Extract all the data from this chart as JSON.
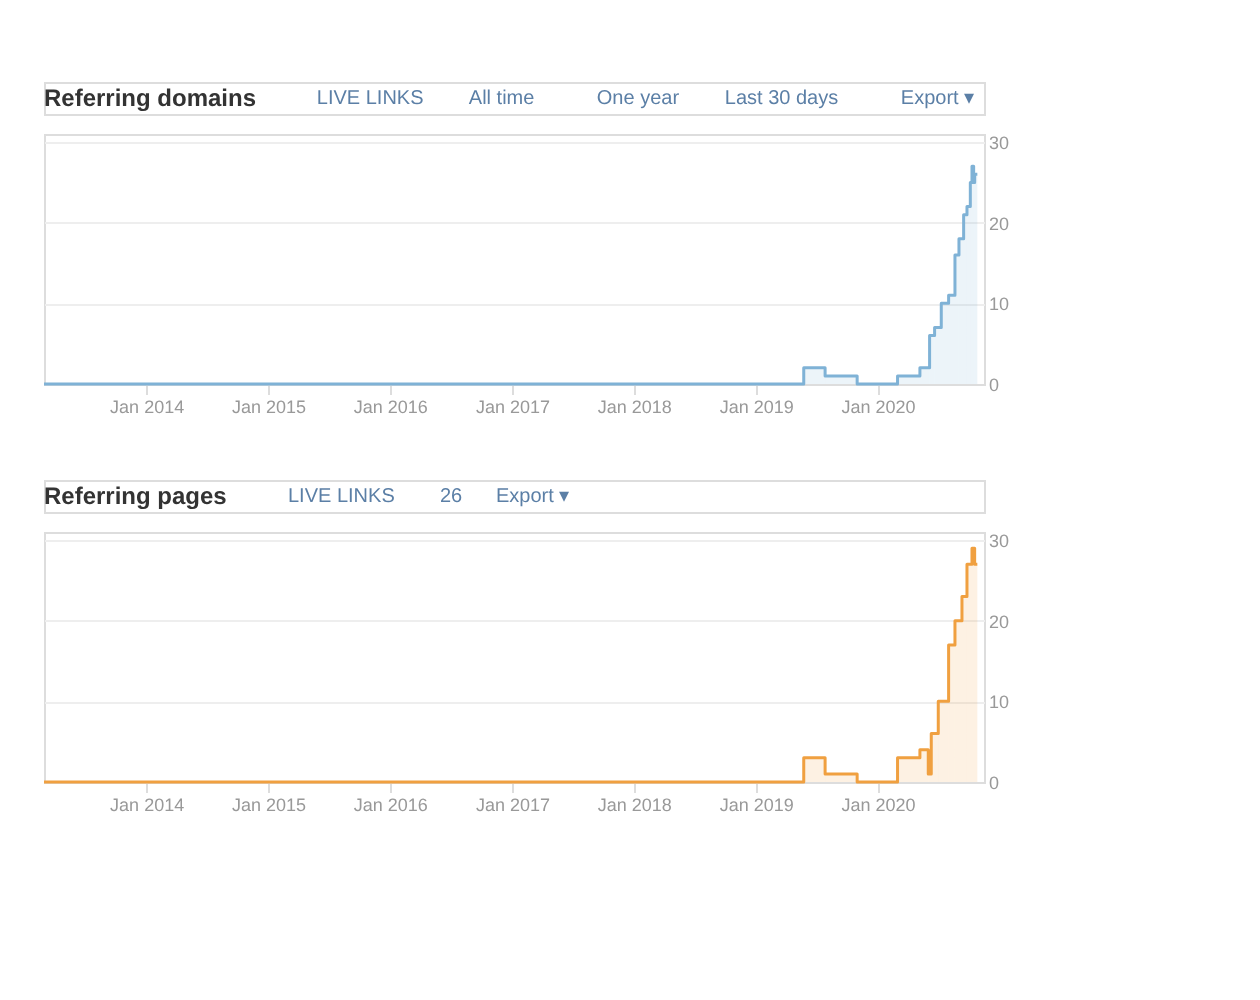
{
  "chart_data": [
    {
      "type": "area",
      "title": "Referring domains",
      "annotations": [
        "LIVE LINKS",
        "All time",
        "One year",
        "Last 30 days",
        "Export ▾"
      ],
      "x": [
        "2013-03-01",
        "2019-05-25",
        "2019-07-28",
        "2019-11-01",
        "2020-03-01",
        "2020-05-07",
        "2020-06-05",
        "2020-06-20",
        "2020-07-10",
        "2020-08-01",
        "2020-08-20",
        "2020-09-01",
        "2020-09-15",
        "2020-09-25",
        "2020-10-05",
        "2020-10-10",
        "2020-10-15",
        "2020-10-18",
        "2020-10-26"
      ],
      "series": [
        {
          "color": "#7fb2d6",
          "values": [
            0,
            2,
            1,
            0,
            1,
            2,
            6,
            7,
            10,
            11,
            16,
            18,
            21,
            22,
            25,
            27,
            25,
            26,
            26
          ]
        }
      ],
      "xlim": [
        "2013-03-01",
        "2020-11-15"
      ],
      "xticks": [
        {
          "value": "2014-01-01",
          "label": "Jan 2014"
        },
        {
          "value": "2015-01-01",
          "label": "Jan 2015"
        },
        {
          "value": "2016-01-01",
          "label": "Jan 2016"
        },
        {
          "value": "2017-01-01",
          "label": "Jan 2017"
        },
        {
          "value": "2018-01-01",
          "label": "Jan 2018"
        },
        {
          "value": "2019-01-01",
          "label": "Jan 2019"
        },
        {
          "value": "2020-01-01",
          "label": "Jan 2020"
        }
      ],
      "ylim": [
        0,
        31
      ],
      "yticks": [
        0,
        10,
        20,
        30
      ],
      "grid": "y"
    },
    {
      "type": "area",
      "title": "Referring pages",
      "annotations": [
        "LIVE LINKS",
        "26",
        "Export ▾"
      ],
      "x": [
        "2013-03-01",
        "2019-05-25",
        "2019-07-28",
        "2019-11-01",
        "2020-03-01",
        "2020-05-07",
        "2020-06-01",
        "2020-06-10",
        "2020-07-01",
        "2020-08-01",
        "2020-08-20",
        "2020-09-10",
        "2020-09-25",
        "2020-10-10",
        "2020-10-18",
        "2020-10-26"
      ],
      "series": [
        {
          "color": "#f0a040",
          "values": [
            0,
            3,
            1,
            0,
            3,
            4,
            1,
            6,
            10,
            17,
            20,
            23,
            27,
            29,
            27,
            27
          ]
        }
      ],
      "xlim": [
        "2013-03-01",
        "2020-11-15"
      ],
      "xticks": [
        {
          "value": "2014-01-01",
          "label": "Jan 2014"
        },
        {
          "value": "2015-01-01",
          "label": "Jan 2015"
        },
        {
          "value": "2016-01-01",
          "label": "Jan 2016"
        },
        {
          "value": "2017-01-01",
          "label": "Jan 2017"
        },
        {
          "value": "2018-01-01",
          "label": "Jan 2018"
        },
        {
          "value": "2019-01-01",
          "label": "Jan 2019"
        },
        {
          "value": "2020-01-01",
          "label": "Jan 2020"
        }
      ],
      "ylim": [
        0,
        31
      ],
      "yticks": [
        0,
        10,
        20,
        30
      ],
      "grid": "y"
    }
  ]
}
